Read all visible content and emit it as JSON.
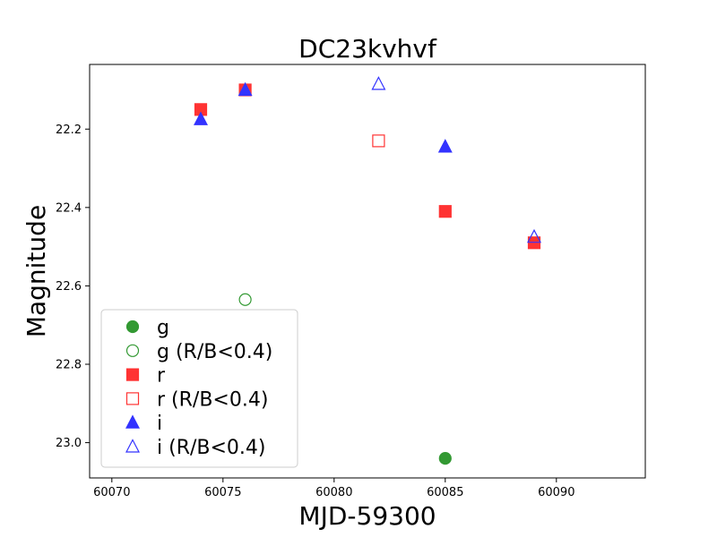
{
  "chart_data": {
    "type": "scatter",
    "title": "DC23kvhvf",
    "xlabel": "MJD-59300",
    "ylabel": "Magnitude",
    "xlim": [
      60069.0,
      60094.0
    ],
    "ylim": [
      23.09,
      22.035
    ],
    "y_inverted": true,
    "grid": false,
    "legend_position": "lower-left",
    "x_ticks": [
      "60070",
      "60075",
      "60080",
      "60085",
      "60090"
    ],
    "x_tick_values": [
      60070,
      60075,
      60080,
      60085,
      60090
    ],
    "y_ticks": [
      "22.2",
      "22.4",
      "22.6",
      "22.8",
      "23.0"
    ],
    "y_tick_values": [
      22.2,
      22.4,
      22.6,
      22.8,
      23.0
    ],
    "series": [
      {
        "name": "g",
        "color": "#339933",
        "marker": "circle",
        "filled": true,
        "x": [
          60085.0
        ],
        "y": [
          23.04
        ]
      },
      {
        "name": "g (R/B<0.4)",
        "color": "#339933",
        "marker": "circle",
        "filled": false,
        "x": [
          60076.0
        ],
        "y": [
          22.635
        ]
      },
      {
        "name": "r",
        "color": "#ff3333",
        "marker": "square",
        "filled": true,
        "x": [
          60074.0,
          60076.0,
          60085.0,
          60089.0
        ],
        "y": [
          22.15,
          22.1,
          22.41,
          22.49
        ]
      },
      {
        "name": "r (R/B<0.4)",
        "color": "#ff3333",
        "marker": "square",
        "filled": false,
        "x": [
          60082.0
        ],
        "y": [
          22.23
        ]
      },
      {
        "name": "i",
        "color": "#3333ff",
        "marker": "triangle",
        "filled": true,
        "x": [
          60074.0,
          60076.0,
          60085.0
        ],
        "y": [
          22.175,
          22.1,
          22.245
        ]
      },
      {
        "name": "i (R/B<0.4)",
        "color": "#3333ff",
        "marker": "triangle",
        "filled": false,
        "x": [
          60082.0,
          60089.0
        ],
        "y": [
          22.085,
          22.475
        ]
      }
    ]
  }
}
